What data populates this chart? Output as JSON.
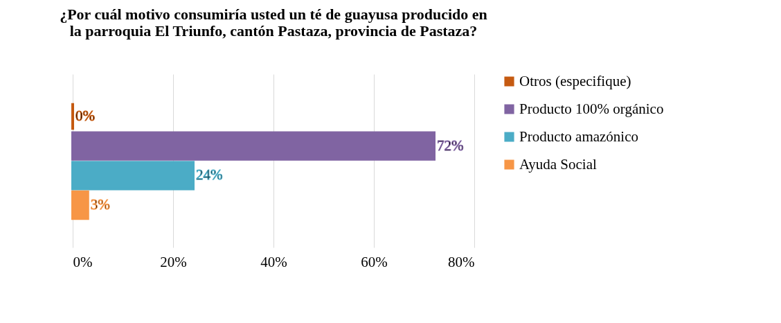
{
  "chart_data": {
    "type": "bar",
    "orientation": "horizontal",
    "title": "¿Por cuál motivo consumiría usted un té de guayusa producido en la parroquia El Triunfo, cantón Pastaza, provincia de Pastaza?",
    "categories": [
      null
    ],
    "series": [
      {
        "name": "Otros (especifique)",
        "color": "#c55a11",
        "values": [
          0
        ],
        "value_labels": [
          "0%"
        ]
      },
      {
        "name": "Producto 100% orgánico",
        "color": "#8064a2",
        "values": [
          72
        ],
        "value_labels": [
          "72%"
        ]
      },
      {
        "name": "Producto amazónico",
        "color": "#4bacc6",
        "values": [
          24
        ],
        "value_labels": [
          "24%"
        ]
      },
      {
        "name": "Ayuda Social",
        "color": "#f79646",
        "values": [
          3
        ],
        "value_labels": [
          "3%"
        ]
      }
    ],
    "xlim": [
      0,
      80
    ],
    "xticks": [
      {
        "value": 0,
        "label": "0%"
      },
      {
        "value": 20,
        "label": "20%"
      },
      {
        "value": 40,
        "label": "40%"
      },
      {
        "value": 60,
        "label": "60%"
      },
      {
        "value": 80,
        "label": "80%"
      }
    ],
    "grid": "x",
    "legend": "right"
  }
}
